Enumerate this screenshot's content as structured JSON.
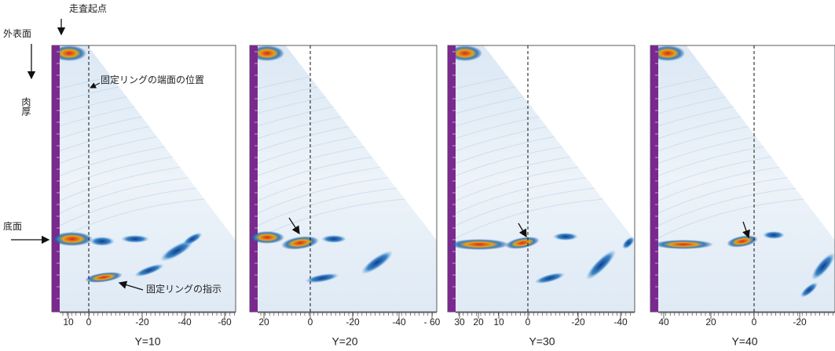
{
  "annotations": {
    "scan_start": "走査起点",
    "outer_surface": "外表面",
    "wall_thickness": "肉厚",
    "bottom_surface": "底面",
    "ring_end_position": "固定リングの端面の位置",
    "ring_indication": "固定リングの指示"
  },
  "panels": [
    {
      "caption": "Y=10",
      "ticks": [
        "10",
        "0",
        "-20",
        "-40",
        "-60"
      ]
    },
    {
      "caption": "Y=20",
      "ticks": [
        "20",
        "0",
        "-20",
        "-40",
        "- 60"
      ]
    },
    {
      "caption": "Y=30",
      "ticks": [
        "30",
        "20",
        "10",
        "0",
        "-20",
        "-40"
      ]
    },
    {
      "caption": "Y=40",
      "ticks": [
        "40",
        "20",
        "0",
        "-20"
      ]
    }
  ]
}
